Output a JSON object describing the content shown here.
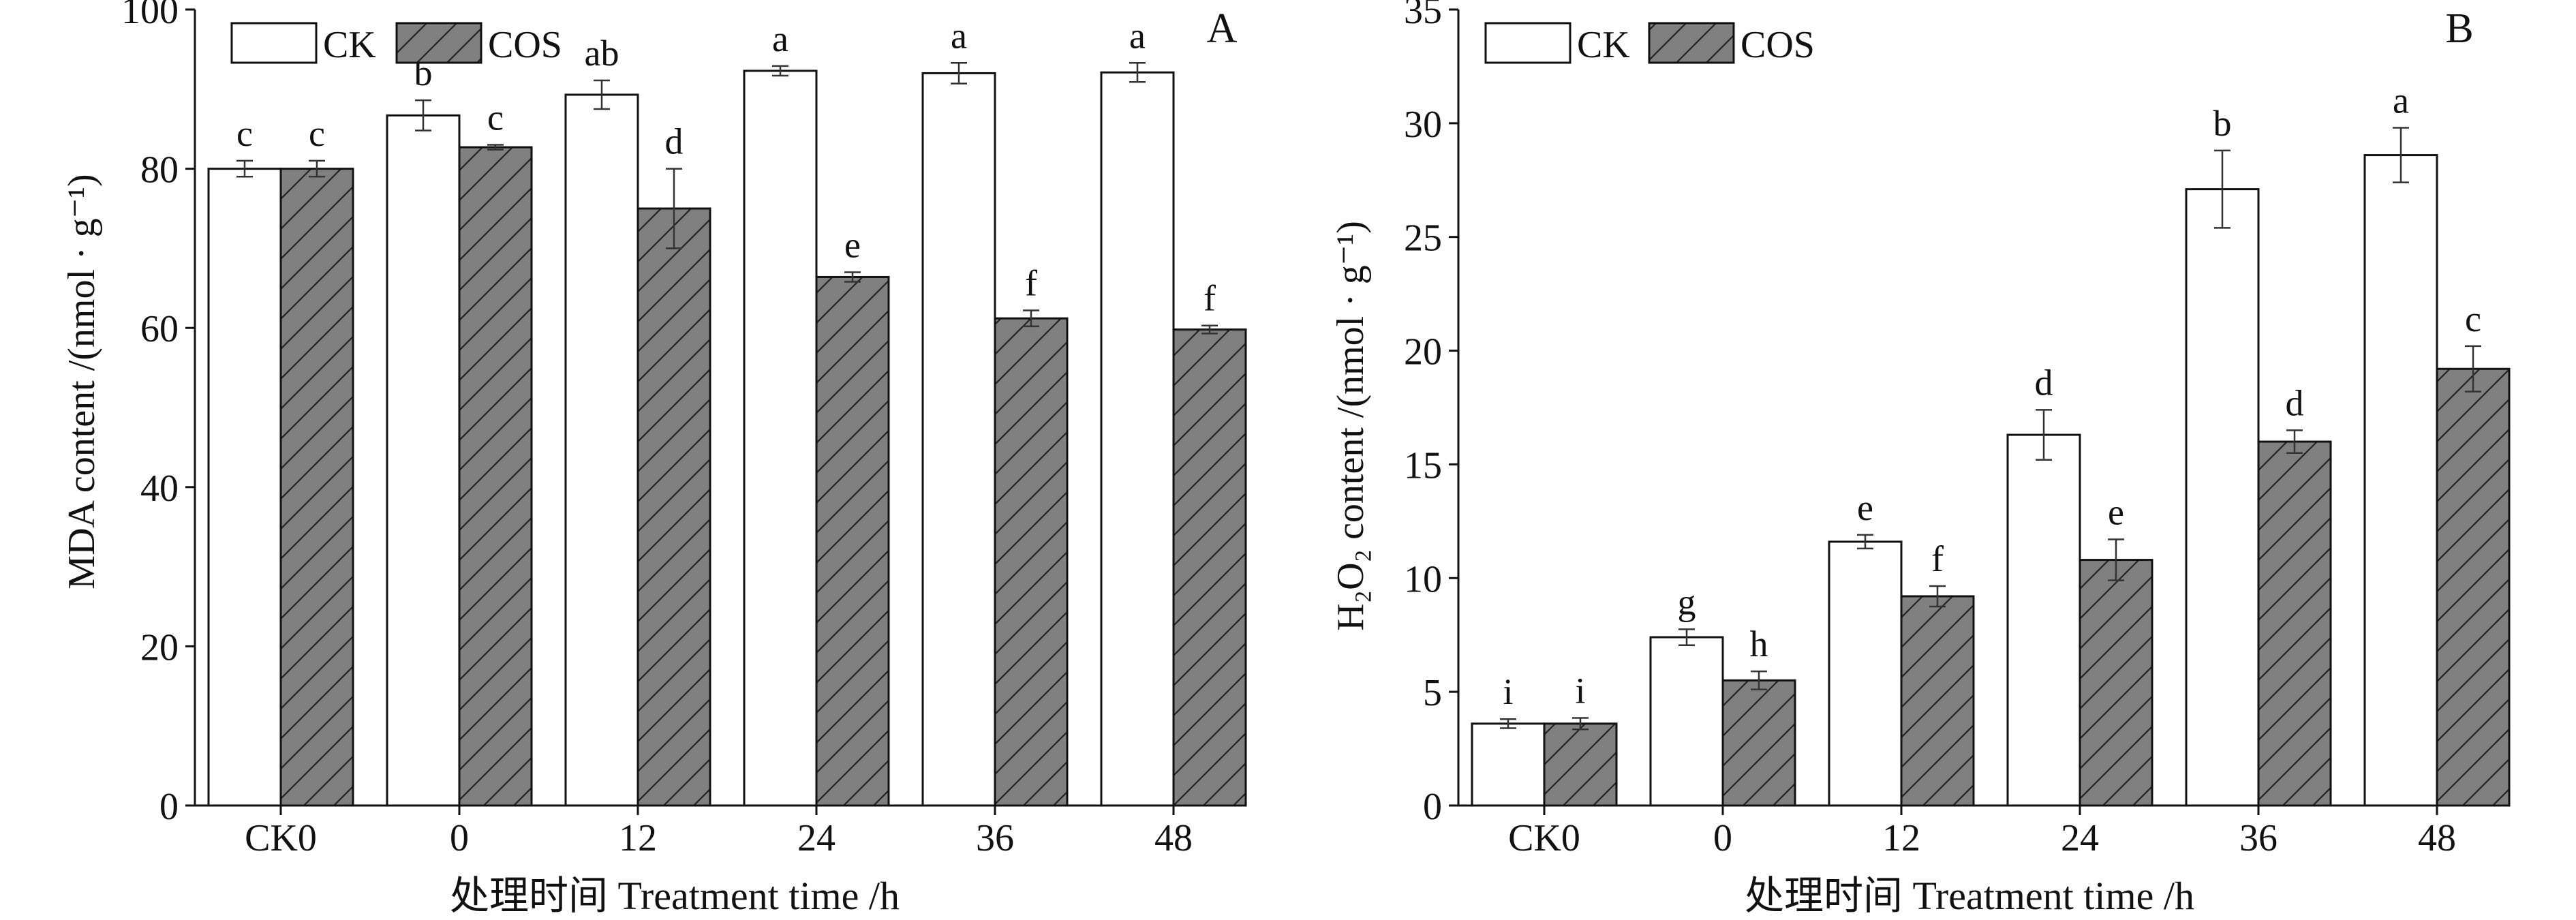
{
  "colors": {
    "ck_fill": "#ffffff",
    "cos_fill": "#808080",
    "stroke": "#111111",
    "hatch": "#222222"
  },
  "legend": {
    "ck_label": "CK",
    "cos_label": "COS",
    "placement": "top-left",
    "cos_pattern": "diagonal-hatch"
  },
  "chart_data": [
    {
      "panel_label": "A",
      "type": "bar",
      "categories": [
        "CK0",
        "0",
        "12",
        "24",
        "36",
        "48"
      ],
      "xlabel": "处理时间 Treatment time /h",
      "ylabel": "MDA content /(nmol · g⁻¹)",
      "ylim": [
        0,
        100
      ],
      "yticks": [
        0,
        20,
        40,
        60,
        80,
        100
      ],
      "grid": false,
      "series": [
        {
          "name": "CK",
          "values": [
            80.0,
            86.7,
            89.3,
            92.3,
            92.0,
            92.1
          ],
          "errors": [
            1.0,
            1.9,
            1.8,
            0.6,
            1.3,
            1.2
          ],
          "letters": [
            "c",
            "b",
            "ab",
            "a",
            "a",
            "a"
          ]
        },
        {
          "name": "COS",
          "values": [
            80.0,
            82.7,
            75.0,
            66.4,
            61.2,
            59.8
          ],
          "errors": [
            1.0,
            0.3,
            5.0,
            0.6,
            1.0,
            0.5
          ],
          "letters": [
            "c",
            "c",
            "d",
            "e",
            "f",
            "f"
          ]
        }
      ]
    },
    {
      "panel_label": "B",
      "type": "bar",
      "categories": [
        "CK0",
        "0",
        "12",
        "24",
        "36",
        "48"
      ],
      "xlabel": "处理时间 Treatment time /h",
      "ylabel": "H₂O₂ content /(nmol · g⁻¹)",
      "ylim": [
        0,
        35
      ],
      "yticks": [
        0,
        5,
        10,
        15,
        20,
        25,
        30,
        35
      ],
      "grid": false,
      "series": [
        {
          "name": "CK",
          "values": [
            3.6,
            7.4,
            11.6,
            16.3,
            27.1,
            28.6
          ],
          "errors": [
            0.2,
            0.35,
            0.3,
            1.1,
            1.7,
            1.2
          ],
          "letters": [
            "i",
            "g",
            "e",
            "d",
            "b",
            "a"
          ]
        },
        {
          "name": "COS",
          "values": [
            3.6,
            5.5,
            9.2,
            10.8,
            16.0,
            19.2
          ],
          "errors": [
            0.25,
            0.4,
            0.45,
            0.9,
            0.5,
            1.0
          ],
          "letters": [
            "i",
            "h",
            "f",
            "e",
            "d",
            "c"
          ]
        }
      ]
    }
  ]
}
